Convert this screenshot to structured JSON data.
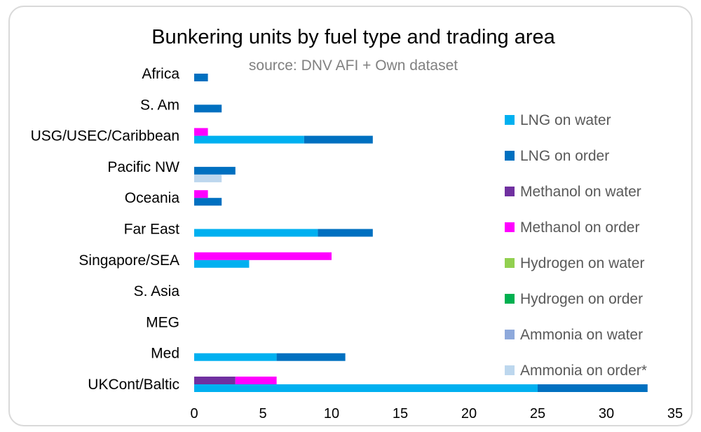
{
  "chart_data": {
    "type": "bar",
    "orientation": "horizontal",
    "stacked": true,
    "title": "Bunkering units by fuel type and trading area",
    "subtitle": "source: DNV AFI + Own dataset",
    "categories": [
      "Africa",
      "S. Am",
      "USG/USEC/Caribbean",
      "Pacific NW",
      "Oceania",
      "Far East",
      "Singapore/SEA",
      "S. Asia",
      "MEG",
      "Med",
      "UKCont/Baltic"
    ],
    "xlim": [
      0,
      35
    ],
    "xticks": [
      0,
      5,
      10,
      15,
      20,
      25,
      30,
      35
    ],
    "grid": false,
    "legend_position": "right",
    "series": [
      {
        "name": "LNG on water",
        "color": "#00B0F0",
        "group": "LNG",
        "values": [
          0,
          0,
          8,
          0,
          0,
          9,
          4,
          0,
          0,
          6,
          25
        ]
      },
      {
        "name": "LNG on order",
        "color": "#0070C0",
        "group": "LNG",
        "values": [
          1,
          2,
          5,
          3,
          2,
          4,
          0,
          0,
          0,
          5,
          8
        ]
      },
      {
        "name": "Methanol on water",
        "color": "#7030A0",
        "group": "Methanol",
        "values": [
          0,
          0,
          0,
          0,
          0,
          0,
          0,
          0,
          0,
          0,
          3
        ]
      },
      {
        "name": "Methanol on order",
        "color": "#FF00FF",
        "group": "Methanol",
        "values": [
          0,
          0,
          1,
          0,
          1,
          0,
          10,
          0,
          0,
          0,
          3
        ]
      },
      {
        "name": "Hydrogen on water",
        "color": "#92D050",
        "group": "Hydrogen",
        "values": [
          0,
          0,
          0,
          0,
          0,
          0,
          0,
          0,
          0,
          0,
          0
        ]
      },
      {
        "name": "Hydrogen on order",
        "color": "#00B050",
        "group": "Hydrogen",
        "values": [
          0,
          0,
          0,
          0,
          0,
          0,
          0,
          0,
          0,
          0,
          0
        ]
      },
      {
        "name": "Ammonia on water",
        "color": "#8EA9DB",
        "group": "Ammonia",
        "values": [
          0,
          0,
          0,
          0,
          0,
          0,
          0,
          0,
          0,
          0,
          0
        ]
      },
      {
        "name": "Ammonia on order*",
        "color": "#BDD7EE",
        "group": "Ammonia",
        "values": [
          0,
          0,
          0,
          2,
          0,
          0,
          0,
          0,
          0,
          0,
          0
        ]
      }
    ]
  }
}
